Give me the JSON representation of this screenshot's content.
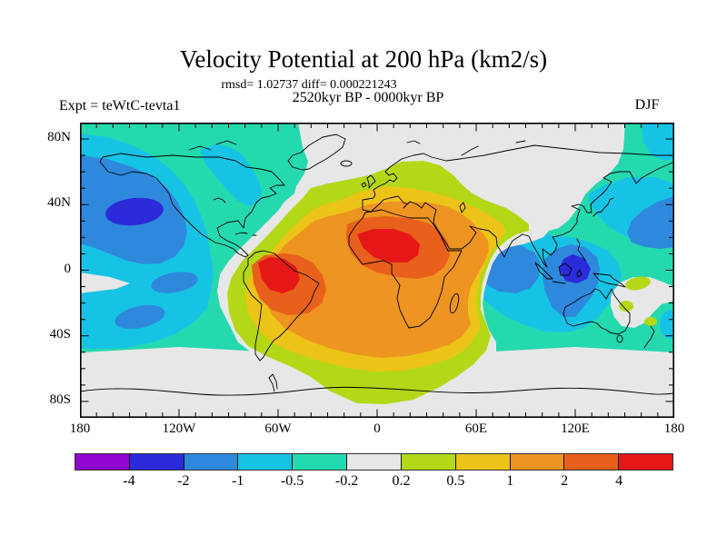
{
  "title": "Velocity Potential at 200 hPa (km2/s)",
  "annotations": {
    "stats": "rmsd= 1.02737 diff= 0.000221243",
    "period": "2520kyr BP - 0000kyr BP",
    "experiment": "Expt = teWtC-tevta1",
    "season": "DJF"
  },
  "axes": {
    "y_tick_labels": [
      "80N",
      "40N",
      "0",
      "40S",
      "80S"
    ],
    "x_tick_labels": [
      "180",
      "120W",
      "60W",
      "0",
      "60E",
      "120E",
      "180"
    ]
  },
  "colorbar": {
    "colors": [
      "#8F06CE",
      "#2B2BD9",
      "#2E89DD",
      "#17C3E5",
      "#25D9AE",
      "#E7E7E7",
      "#B2D818",
      "#ECC417",
      "#ED9421",
      "#E8601B",
      "#E61717"
    ],
    "boundary_labels": [
      "-4",
      "-2",
      "-1",
      "-0.5",
      "-0.2",
      "0.2",
      "0.5",
      "1",
      "2",
      "4"
    ]
  },
  "palette": {
    "purple": "#8F06CE",
    "blue_dark": "#2B2BD9",
    "blue": "#2E89DD",
    "cyan": "#17C3E5",
    "teal": "#25D9AE",
    "neutral": "#E7E7E7",
    "green": "#B2D818",
    "gold": "#ECC417",
    "orange": "#ED9421",
    "red_orange": "#E8601B",
    "red": "#E61717"
  },
  "chart_data": {
    "type": "heatmap",
    "subtype": "filled_contour_world_map",
    "title": "Velocity Potential at 200 hPa (km2/s)",
    "units": "km2/s",
    "stat_annotations": {
      "rmsd": 1.02737,
      "diff": 0.000221243
    },
    "comparison": "2520kyr BP - 0000kyr BP",
    "experiment": "teWtC-tevta1",
    "season": "DJF",
    "projection": "equirectangular",
    "x_axis": {
      "label": "longitude",
      "range": [
        -180,
        180
      ],
      "tick_labels": [
        "180",
        "120W",
        "60W",
        "0",
        "60E",
        "120E",
        "180"
      ],
      "major_tick_deg": 60,
      "minor_tick_deg": 10
    },
    "y_axis": {
      "label": "latitude",
      "range": [
        -90,
        90
      ],
      "tick_labels": [
        "80N",
        "40N",
        "0",
        "40S",
        "80S"
      ],
      "major_tick_deg": 40,
      "minor_tick_deg": 10
    },
    "contour_levels": [
      -4,
      -2,
      -1,
      -0.5,
      -0.2,
      0.2,
      0.5,
      1,
      2,
      4
    ],
    "level_colors": [
      "#8F06CE",
      "#2B2BD9",
      "#2E89DD",
      "#17C3E5",
      "#25D9AE",
      "#E7E7E7",
      "#B2D818",
      "#ECC417",
      "#ED9421",
      "#E8601B",
      "#E61717"
    ],
    "legend_position": "bottom",
    "grid": false,
    "notable_features": [
      {
        "feature": "positive center above 4",
        "location": "northern South America / western tropical Atlantic (~60W, 5S)"
      },
      {
        "feature": "positive center above 4",
        "location": "north-central Africa (~10E, 15N)"
      },
      {
        "feature": "broad positive anomaly 1 to 4",
        "location": "South America, Atlantic Ocean, Africa, Mediterranean, Middle East"
      },
      {
        "feature": "positive ring 0.2 to 1",
        "location": "Europe, Scandinavia, central Asia, South Atlantic to Antarctica"
      },
      {
        "feature": "negative center -2 to -4",
        "location": "North Pacific (~150W, 35N)"
      },
      {
        "feature": "negative center -2 to -4",
        "location": "Maritime Continent (~120E, 0)"
      },
      {
        "feature": "negative anomaly -1 to -2",
        "location": "Indian Ocean, Bay of Bengal, northwest Australia, subtropical South Pacific"
      },
      {
        "feature": "near-zero band -0.2 to 0.2",
        "location": "polar caps, central/eastern Asia, equatorial eastern Pacific, Coral Sea"
      }
    ]
  }
}
